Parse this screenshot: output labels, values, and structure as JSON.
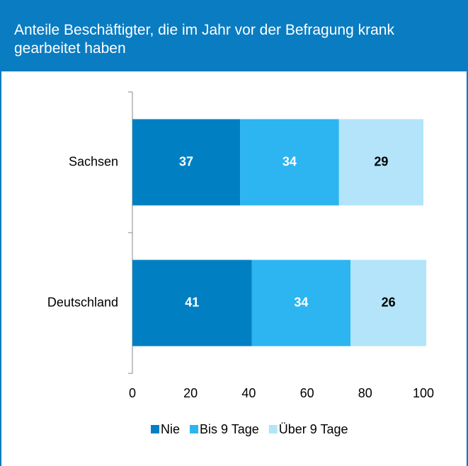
{
  "chart_data": {
    "type": "stacked_barh",
    "title": "Anteile Beschäftigter, die im Jahr vor der Befragung krank gearbeitet haben",
    "categories": [
      "Sachsen",
      "Deutschland"
    ],
    "series": [
      {
        "name": "Nie",
        "color": "#0080c2",
        "label_color": "#ffffff",
        "values": [
          37,
          41
        ]
      },
      {
        "name": "Bis 9 Tage",
        "color": "#2cb5f0",
        "label_color": "#ffffff",
        "values": [
          34,
          34
        ]
      },
      {
        "name": "Über 9 Tage",
        "color": "#b3e4fa",
        "label_color": "#000000",
        "values": [
          29,
          26
        ]
      }
    ],
    "xlim": [
      0,
      100
    ],
    "xticks": [
      0,
      20,
      40,
      60,
      80,
      100
    ],
    "legend": "bottom"
  }
}
